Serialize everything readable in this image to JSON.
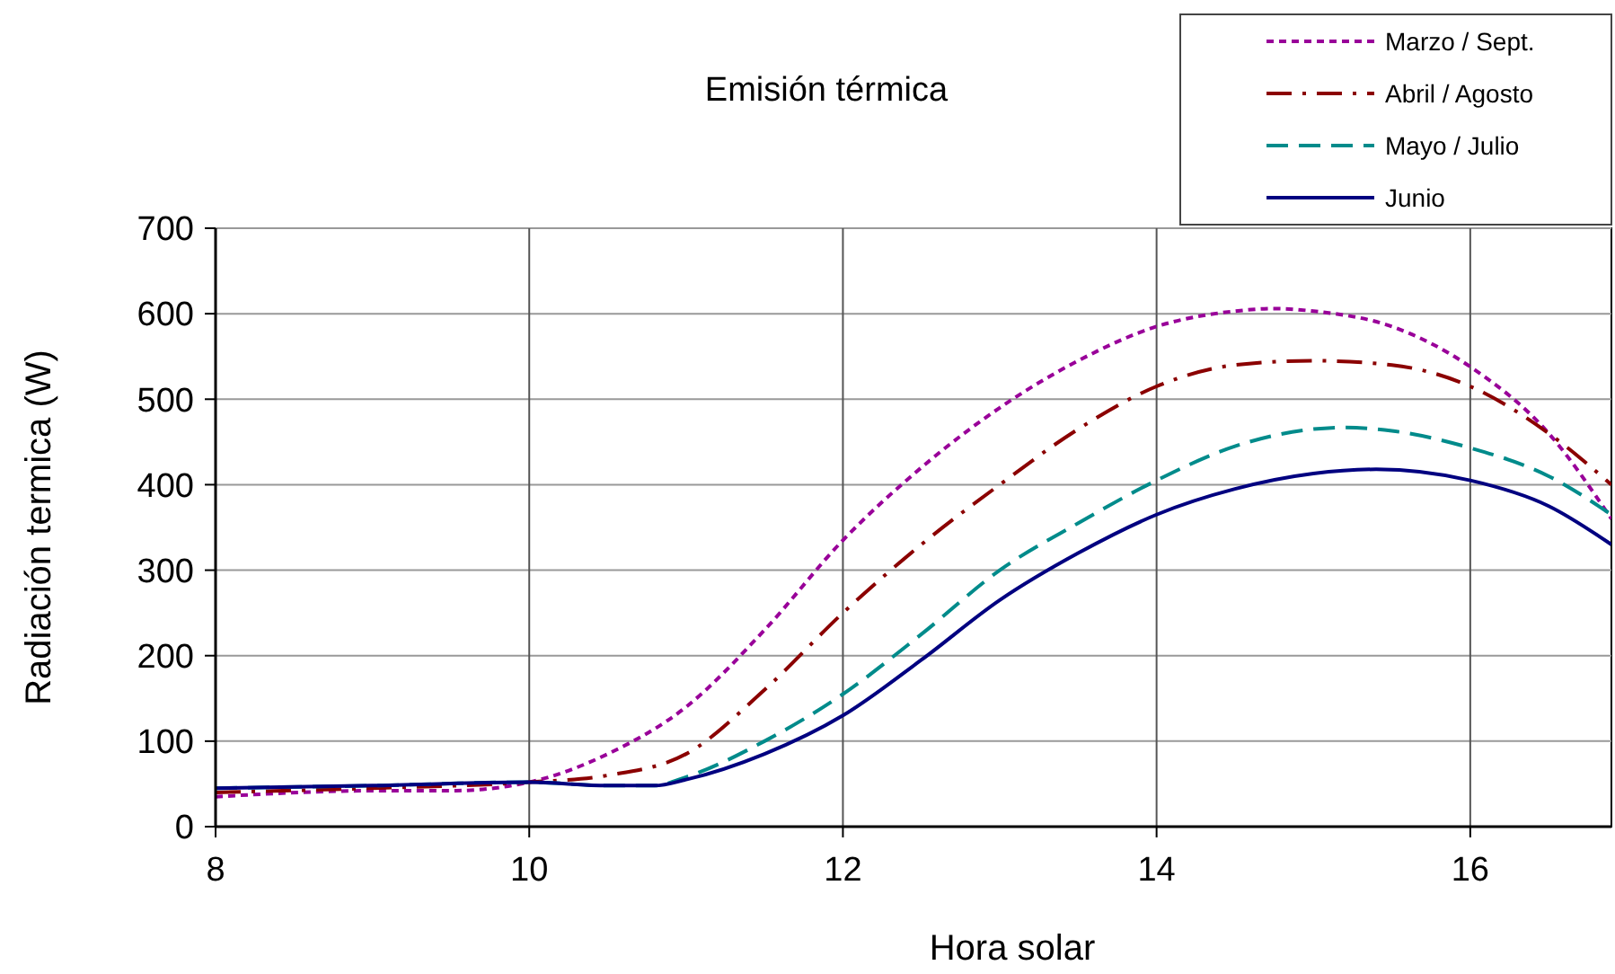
{
  "chart_data": {
    "type": "line",
    "title": "Emisión térmica",
    "xlabel": "Hora solar",
    "ylabel": "Radiación termica (W)",
    "xlim": [
      8,
      16.9
    ],
    "xticks": [
      8,
      10,
      12,
      14,
      16
    ],
    "ylim": [
      0,
      700
    ],
    "yticks": [
      0,
      100,
      200,
      300,
      400,
      500,
      600,
      700
    ],
    "grid": true,
    "legend": "top right",
    "marker": "none",
    "series": [
      {
        "name": "Marzo / Sept.",
        "color": "#990099",
        "line_style": "dotted",
        "x": [
          8,
          9,
          9.5,
          10,
          10.5,
          11,
          11.5,
          12,
          12.5,
          13,
          13.5,
          14,
          14.5,
          14.75,
          15,
          15.5,
          16,
          16.5,
          16.9
        ],
        "values": [
          35,
          42,
          42,
          52,
          85,
          140,
          230,
          335,
          420,
          490,
          545,
          585,
          603,
          606,
          603,
          585,
          538,
          460,
          360
        ]
      },
      {
        "name": "Abril / Agosto",
        "color": "#8b0000",
        "line_style": "dashdot",
        "x": [
          8,
          9,
          10,
          10.5,
          11,
          11.5,
          12,
          12.5,
          13,
          13.5,
          14,
          14.5,
          15,
          15.5,
          16,
          16.5,
          16.9
        ],
        "values": [
          40,
          45,
          52,
          60,
          85,
          160,
          250,
          330,
          400,
          465,
          515,
          540,
          545,
          540,
          515,
          460,
          400
        ]
      },
      {
        "name": "Mayo / Julio",
        "color": "#008b8b",
        "line_style": "dashed",
        "x": [
          8,
          9,
          10,
          10.5,
          10.8,
          11,
          11.5,
          12,
          12.5,
          13,
          13.5,
          14,
          14.5,
          15,
          15.2,
          15.5,
          16,
          16.5,
          16.9
        ],
        "values": [
          45,
          48,
          52,
          48,
          48,
          58,
          100,
          155,
          225,
          300,
          355,
          405,
          445,
          465,
          467,
          463,
          443,
          410,
          365
        ]
      },
      {
        "name": "Junio",
        "color": "#000080",
        "line_style": "solid",
        "x": [
          8,
          9,
          10,
          10.5,
          10.8,
          11,
          11.5,
          12,
          12.5,
          13,
          13.5,
          14,
          14.5,
          15,
          15.4,
          16,
          16.5,
          16.9
        ],
        "values": [
          45,
          48,
          52,
          48,
          48,
          55,
          85,
          130,
          195,
          265,
          320,
          365,
          395,
          413,
          418,
          405,
          375,
          330
        ]
      }
    ]
  }
}
